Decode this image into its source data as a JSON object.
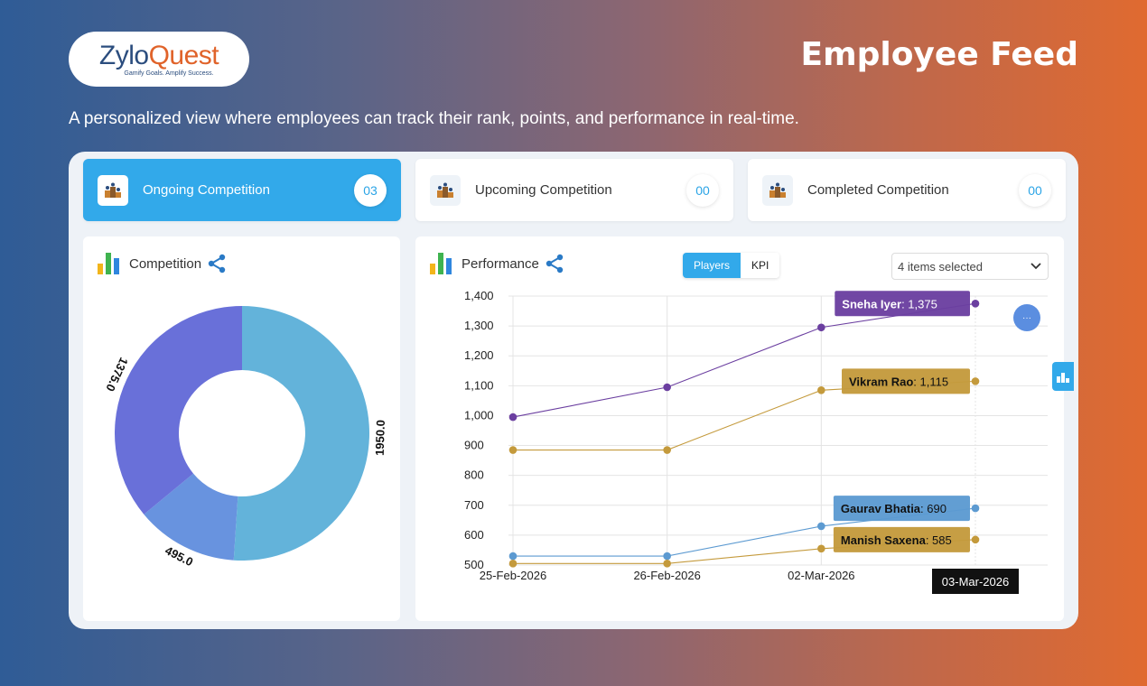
{
  "brand": {
    "logo_zylo": "Zylo",
    "logo_quest": "Quest",
    "tagline": "Gamify Goals. Amplify Success."
  },
  "header": {
    "title": "Employee Feed",
    "subtitle": "A personalized view where employees can track their rank, points, and performance in real-time."
  },
  "tabs": [
    {
      "label": "Ongoing Competition",
      "count": "03",
      "active": true,
      "icon": "podium-icon"
    },
    {
      "label": "Upcoming Competition",
      "count": "00",
      "active": false,
      "icon": "podium-icon"
    },
    {
      "label": "Completed Competition",
      "count": "00",
      "active": false,
      "icon": "podium-icon"
    }
  ],
  "competition_card": {
    "title": "Competition",
    "icon": "bar-chart-icon",
    "share_icon": "share-icon"
  },
  "performance_card": {
    "title": "Performance",
    "icon": "bar-chart-icon",
    "share_icon": "share-icon",
    "toggle": {
      "players": "Players",
      "kpi": "KPI",
      "selected": "Players"
    },
    "dropdown_value": "4 items selected",
    "fab_label": "···"
  },
  "colors": {
    "accent": "#32a9ea",
    "donut": [
      "#63b3da",
      "#6893df",
      "#6970d9"
    ],
    "series": [
      "#6b3fa0",
      "#c49a3c",
      "#5c9ad1",
      "#c49a3c"
    ]
  },
  "chart_data": [
    {
      "type": "pie",
      "donut": true,
      "slices": [
        {
          "value": 1950.0,
          "label": "1950.0",
          "color": "#63b3da"
        },
        {
          "value": 495.0,
          "label": "495.0",
          "color": "#6893df"
        },
        {
          "value": 1375.0,
          "label": "1375.0",
          "color": "#6970d9"
        }
      ]
    },
    {
      "type": "line",
      "categories": [
        "25-Feb-2026",
        "26-Feb-2026",
        "02-Mar-2026",
        "03-Mar-2026"
      ],
      "ylim": [
        500,
        1400
      ],
      "yticks": [
        "500",
        "600",
        "700",
        "800",
        "900",
        "1,000",
        "1,100",
        "1,200",
        "1,300",
        "1,400"
      ],
      "grid": true,
      "hover_label": "03-Mar-2026",
      "series": [
        {
          "name": "Sneha  Iyer",
          "values": [
            995,
            1095,
            1295,
            1375
          ],
          "color": "#6b3fa0",
          "label_value": "1,375"
        },
        {
          "name": "Vikram Rao",
          "values": [
            885,
            885,
            1085,
            1115
          ],
          "color": "#c49a3c",
          "label_value": "1,115"
        },
        {
          "name": "Gaurav Bhatia",
          "values": [
            530,
            530,
            630,
            690
          ],
          "color": "#5c9ad1",
          "label_value": "690"
        },
        {
          "name": "Manish Saxena",
          "values": [
            505,
            505,
            555,
            585
          ],
          "color": "#c49a3c",
          "label_value": "585"
        }
      ]
    }
  ]
}
